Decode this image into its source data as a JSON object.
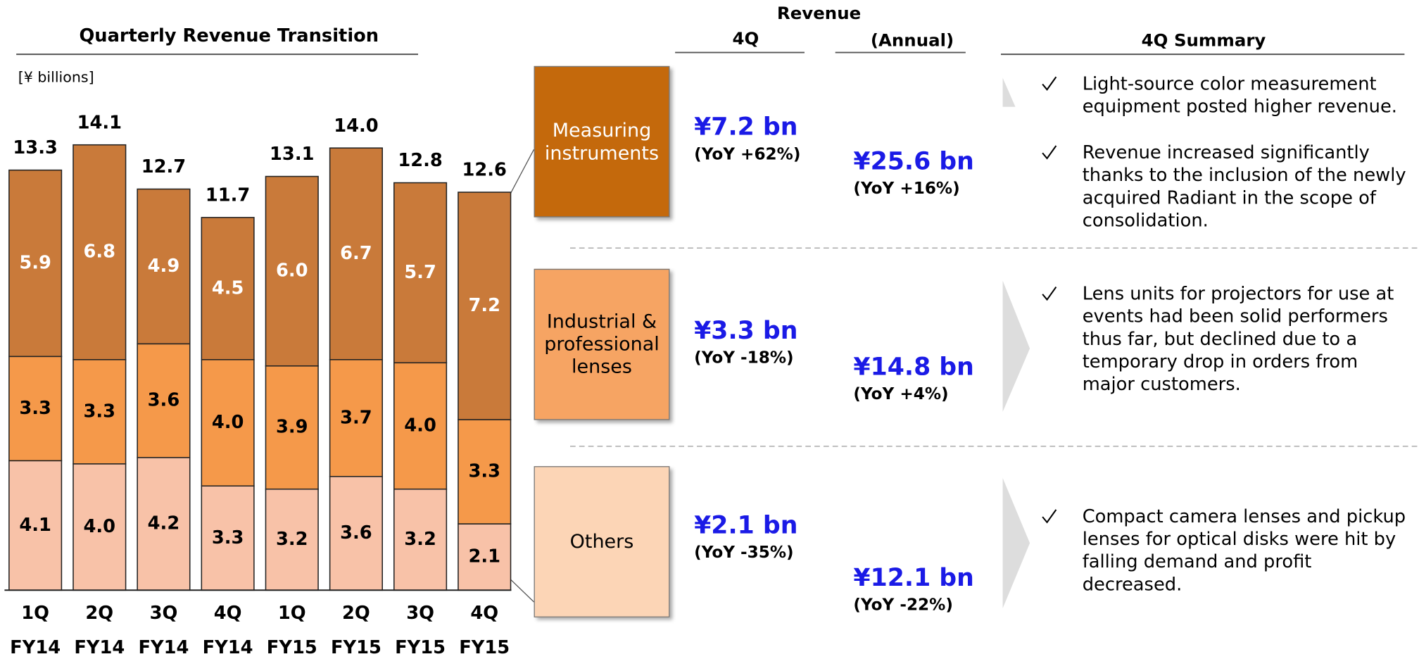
{
  "chart_data": {
    "type": "bar",
    "stacked": true,
    "title": "Quarterly Revenue Transition",
    "unit_label": "[¥ billions]",
    "categories": [
      [
        "1Q",
        "FY14"
      ],
      [
        "2Q",
        "FY14"
      ],
      [
        "3Q",
        "FY14"
      ],
      [
        "4Q",
        "FY14"
      ],
      [
        "1Q",
        "FY15"
      ],
      [
        "2Q",
        "FY15"
      ],
      [
        "3Q",
        "FY15"
      ],
      [
        "4Q",
        "FY15"
      ]
    ],
    "series": [
      {
        "name": "Others",
        "color": "#f8c2a8",
        "box_color": "#fcd5b6",
        "values": [
          4.1,
          4.0,
          4.2,
          3.3,
          3.2,
          3.6,
          3.2,
          2.1
        ],
        "value_labels": [
          "4.1",
          "4.0",
          "4.2",
          "3.3",
          "3.2",
          "3.6",
          "3.2",
          "2.1"
        ]
      },
      {
        "name": "Industrial & professional lenses",
        "color": "#f5994a",
        "box_color": "#f6a463",
        "values": [
          3.3,
          3.3,
          3.6,
          4.0,
          3.9,
          3.7,
          4.0,
          3.3
        ],
        "value_labels": [
          "3.3",
          "3.3",
          "3.6",
          "4.0",
          "3.9",
          "3.7",
          "4.0",
          "3.3"
        ]
      },
      {
        "name": "Measuring instruments",
        "color": "#c97a3a",
        "box_color": "#c4690c",
        "values": [
          5.9,
          6.8,
          4.9,
          4.5,
          6.0,
          6.7,
          5.7,
          7.2
        ],
        "value_labels": [
          "5.9",
          "6.8",
          "4.9",
          "4.5",
          "6.0",
          "6.7",
          "5.7",
          "7.2"
        ]
      }
    ],
    "totals": [
      13.3,
      14.1,
      12.7,
      11.7,
      13.1,
      14.0,
      12.8,
      12.6
    ],
    "total_labels": [
      "13.3",
      "14.1",
      "12.7",
      "11.7",
      "13.1",
      "14.0",
      "12.8",
      "12.6"
    ]
  },
  "revenue_table": {
    "header": "Revenue",
    "col_4q": "4Q",
    "col_annual": "(Annual)",
    "summary_header": "4Q Summary",
    "rows": [
      {
        "q4": "¥7.2 bn",
        "q4_yoy": "(YoY +62%)",
        "annual": "¥25.6 bn",
        "annual_yoy": "(YoY +16%)",
        "bullets": [
          "Light-source color measurement equipment posted higher revenue.",
          "Revenue increased significantly thanks to the inclusion of the newly acquired Radiant in the scope of consolidation."
        ]
      },
      {
        "q4": "¥3.3 bn",
        "q4_yoy": "(YoY -18%)",
        "annual": "¥14.8 bn",
        "annual_yoy": "(YoY +4%)",
        "bullets": [
          "Lens units for projectors for use at events had been solid performers thus far, but declined due to a temporary drop in orders from major customers."
        ]
      },
      {
        "q4": "¥2.1 bn",
        "q4_yoy": "(YoY -35%)",
        "annual": "¥12.1 bn",
        "annual_yoy": "(YoY -22%)",
        "bullets": [
          "Compact camera lenses and pickup lenses for optical disks were hit by falling demand and profit decreased."
        ]
      }
    ]
  }
}
